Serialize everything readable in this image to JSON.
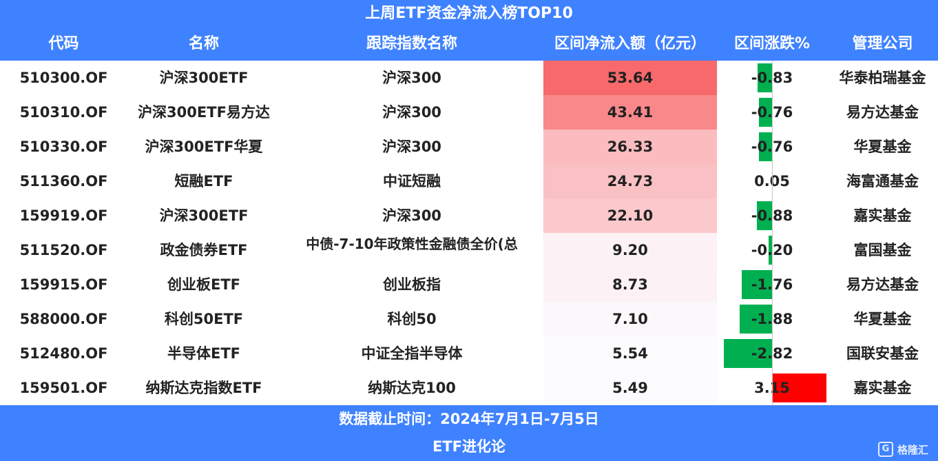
{
  "title": "上周ETF资金净流入榜TOP10",
  "headers": [
    "代码",
    "名称",
    "跟踪指数名称",
    "区间净流入额（亿元）",
    "区间涨跌%",
    "管理公司"
  ],
  "rows": [
    {
      "code": "510300.OF",
      "name": "沪深300ETF",
      "index": "沪深300",
      "flow": "53.64",
      "chg": "-0.83",
      "company": "华泰柏瑞基金"
    },
    {
      "code": "510310.OF",
      "name": "沪深300ETF易方达",
      "index": "沪深300",
      "flow": "43.41",
      "chg": "-0.76",
      "company": "易方达基金"
    },
    {
      "code": "510330.OF",
      "name": "沪深300ETF华夏",
      "index": "沪深300",
      "flow": "26.33",
      "chg": "-0.76",
      "company": "华夏基金"
    },
    {
      "code": "511360.OF",
      "name": "短融ETF",
      "index": "中证短融",
      "flow": "24.73",
      "chg": "0.05",
      "company": "海富通基金"
    },
    {
      "code": "159919.OF",
      "name": "沪深300ETF",
      "index": "沪深300",
      "flow": "22.10",
      "chg": "-0.88",
      "company": "嘉实基金"
    },
    {
      "code": "511520.OF",
      "name": "政金债券ETF",
      "index": "中债-7-10年政策性金融债全价(总",
      "flow": "9.20",
      "chg": "-0.20",
      "company": "富国基金"
    },
    {
      "code": "159915.OF",
      "name": "创业板ETF",
      "index": "创业板指",
      "flow": "8.73",
      "chg": "-1.76",
      "company": "易方达基金"
    },
    {
      "code": "588000.OF",
      "name": "科创50ETF",
      "index": "科创50",
      "flow": "7.10",
      "chg": "-1.88",
      "company": "华夏基金"
    },
    {
      "code": "512480.OF",
      "name": "半导体ETF",
      "index": "中证全指半导体",
      "flow": "5.54",
      "chg": "-2.82",
      "company": "国联安基金"
    },
    {
      "code": "159501.OF",
      "name": "纳斯达克指数ETF",
      "index": "纳斯达克100",
      "flow": "5.49",
      "chg": "3.15",
      "company": "嘉实基金"
    }
  ],
  "footer": {
    "date_note": "数据截止时间：2024年7月1日-7月5日",
    "source": "ETF进化论"
  },
  "watermark": "格隆汇",
  "colors": {
    "header_bg": "#3f82ff",
    "up": "#ff0000",
    "down": "#00b050",
    "flow_high": "#f8696b",
    "flow_low": "#fcfcff"
  }
}
